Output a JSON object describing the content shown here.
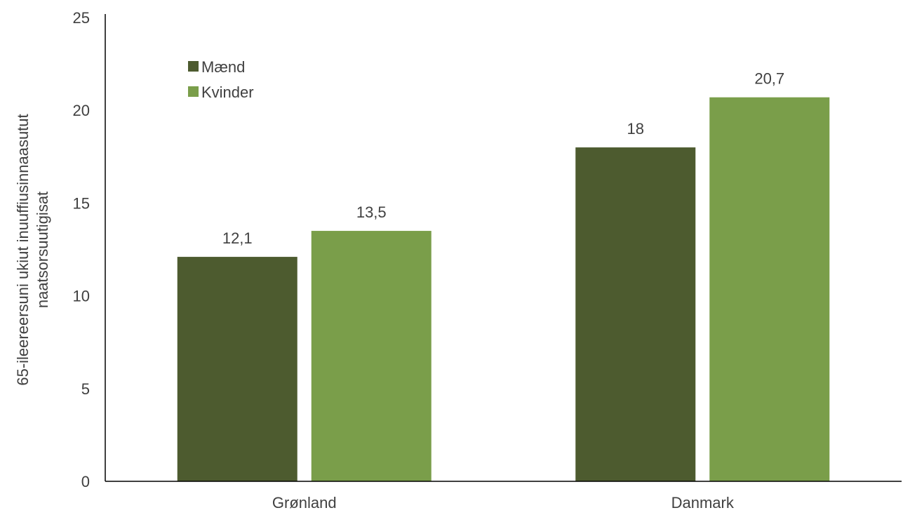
{
  "chart_data": {
    "type": "bar",
    "title": "",
    "xlabel": "",
    "ylabel_lines": [
      "65-ileereersuni ukiut inuuffiusinnaasutut",
      "naatsorsuutigisat"
    ],
    "categories": [
      "Grønland",
      "Danmark"
    ],
    "series": [
      {
        "name": "Mænd",
        "color": "#4d5b2f",
        "values": [
          12.1,
          18
        ],
        "labels": [
          "12,1",
          "18"
        ]
      },
      {
        "name": "Kvinder",
        "color": "#7a9e4a",
        "values": [
          13.5,
          20.7
        ],
        "labels": [
          "13,5",
          "20,7"
        ]
      }
    ],
    "ylim": [
      0,
      25
    ],
    "yticks": [
      0,
      5,
      10,
      15,
      20,
      25
    ],
    "grid": false,
    "legend_position": "top-left"
  }
}
